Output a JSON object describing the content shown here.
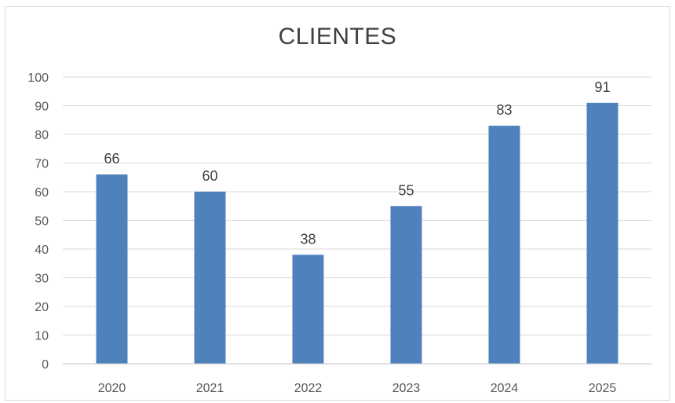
{
  "chart_data": {
    "type": "bar",
    "title": "CLIENTES",
    "xlabel": "",
    "ylabel": "",
    "categories": [
      "2020",
      "2021",
      "2022",
      "2023",
      "2024",
      "2025"
    ],
    "values": [
      66,
      60,
      38,
      55,
      83,
      91
    ],
    "data_labels": [
      "66",
      "60",
      "38",
      "55",
      "83",
      "91"
    ],
    "y_ticks": [
      "0",
      "10",
      "20",
      "30",
      "40",
      "50",
      "60",
      "70",
      "80",
      "90",
      "100"
    ],
    "ylim": [
      0,
      100
    ],
    "grid": true,
    "legend": "none",
    "colors": {
      "bar": "#4f81bd",
      "grid": "#d9d9d9",
      "axis": "#bfbfbf"
    }
  }
}
